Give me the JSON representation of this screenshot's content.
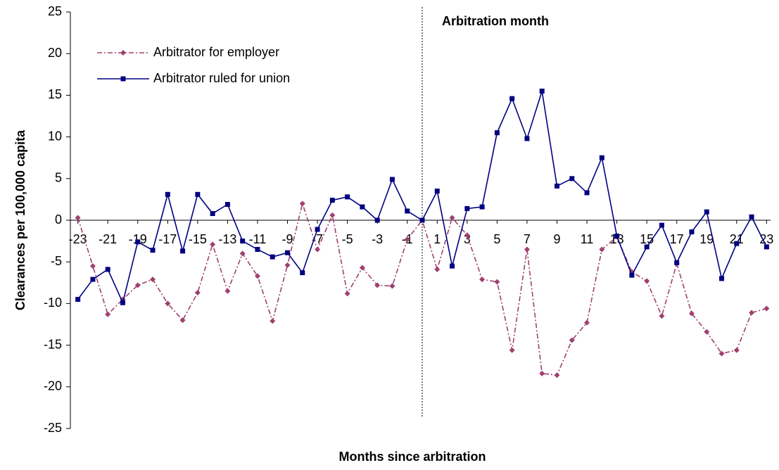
{
  "chart_data": {
    "type": "line",
    "ylabel": "Clearances per 100,000 capita",
    "xlabel": "Months since arbitration",
    "annotation": {
      "text": "Arbitration month",
      "x": 0
    },
    "x": [
      -23,
      -22,
      -21,
      -20,
      -19,
      -18,
      -17,
      -16,
      -15,
      -14,
      -13,
      -12,
      -11,
      -10,
      -9,
      -8,
      -7,
      -6,
      -5,
      -4,
      -3,
      -2,
      -1,
      0,
      1,
      2,
      3,
      4,
      5,
      6,
      7,
      8,
      9,
      10,
      11,
      12,
      13,
      14,
      15,
      16,
      17,
      18,
      19,
      20,
      21,
      22,
      23
    ],
    "xlim": [
      -23.5,
      23.5
    ],
    "xticks": [
      -23,
      -21,
      -19,
      -17,
      -15,
      -13,
      -11,
      -9,
      -7,
      -5,
      -3,
      -1,
      1,
      3,
      5,
      7,
      9,
      11,
      13,
      15,
      17,
      19,
      21,
      23
    ],
    "ylim": [
      -25,
      25
    ],
    "yticks": [
      -25,
      -20,
      -15,
      -10,
      -5,
      0,
      5,
      10,
      15,
      20,
      25
    ],
    "legend": "top-left",
    "series": [
      {
        "name": "Arbitrator for employer",
        "color": "#A0406F",
        "marker": "diamond",
        "line_style": "dashdot",
        "values": [
          0.3,
          -5.5,
          -11.3,
          -9.5,
          -7.8,
          -7.1,
          -10,
          -12,
          -8.7,
          -2.9,
          -8.5,
          -4,
          -6.7,
          -12.1,
          -5.4,
          2,
          -3.5,
          0.6,
          -8.8,
          -5.7,
          -7.8,
          -7.9,
          -2.3,
          0,
          -5.9,
          0.3,
          -1.8,
          -7.1,
          -7.4,
          -15.6,
          -3.5,
          -18.4,
          -18.6,
          -14.4,
          -12.3,
          -3.5,
          -2,
          -6.2,
          -7.3,
          -11.5,
          -5.2,
          -11.2,
          -13.4,
          -16,
          -15.6,
          -11.1,
          -10.6
        ]
      },
      {
        "name": "Arbitrator ruled for union",
        "color": "#000080",
        "marker": "square",
        "line_style": "solid",
        "values": [
          -9.5,
          -7.1,
          -5.9,
          -9.9,
          -2.6,
          -3.6,
          3.1,
          -3.7,
          3.1,
          0.8,
          1.9,
          -2.5,
          -3.5,
          -4.4,
          -3.9,
          -6.3,
          -1.1,
          2.4,
          2.8,
          1.6,
          0,
          4.9,
          1.1,
          0,
          3.5,
          -5.5,
          1.4,
          1.6,
          10.5,
          14.6,
          9.8,
          15.5,
          4.1,
          5,
          3.3,
          7.5,
          -1.9,
          -6.6,
          -3.2,
          -0.6,
          -5.1,
          -1.4,
          1,
          -7,
          -2.8,
          0.4,
          -3.2
        ]
      }
    ]
  }
}
